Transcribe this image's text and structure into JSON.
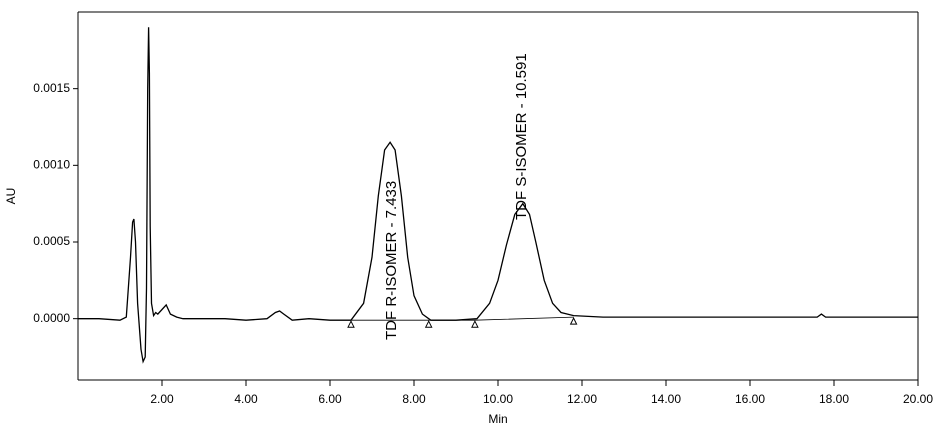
{
  "chart_data": {
    "type": "line",
    "x_label": "Min",
    "y_label": "AU",
    "xlim": [
      0,
      20
    ],
    "ylim": [
      -0.0004,
      0.002
    ],
    "xticks": [
      {
        "value": 2,
        "label": "2.00"
      },
      {
        "value": 4,
        "label": "4.00"
      },
      {
        "value": 6,
        "label": "6.00"
      },
      {
        "value": 8,
        "label": "8.00"
      },
      {
        "value": 10,
        "label": "10.00"
      },
      {
        "value": 12,
        "label": "12.00"
      },
      {
        "value": 14,
        "label": "14.00"
      },
      {
        "value": 16,
        "label": "16.00"
      },
      {
        "value": 18,
        "label": "18.00"
      },
      {
        "value": 20,
        "label": "20.00"
      }
    ],
    "yticks": [
      {
        "value": 0,
        "label": "0.0000"
      },
      {
        "value": 0.0005,
        "label": "0.0005"
      },
      {
        "value": 0.001,
        "label": "0.0010"
      },
      {
        "value": 0.0015,
        "label": "0.0015"
      }
    ],
    "color": "#000000",
    "x": [
      0,
      0.5,
      1.0,
      1.15,
      1.25,
      1.3,
      1.33,
      1.37,
      1.42,
      1.5,
      1.55,
      1.6,
      1.63,
      1.66,
      1.68,
      1.7,
      1.72,
      1.75,
      1.8,
      1.85,
      1.9,
      2.0,
      2.1,
      2.2,
      2.35,
      2.5,
      3.0,
      3.5,
      4.0,
      4.5,
      4.7,
      4.8,
      4.9,
      5.1,
      5.5,
      6.0,
      6.5,
      6.8,
      7.0,
      7.15,
      7.3,
      7.43,
      7.55,
      7.7,
      7.85,
      8.0,
      8.2,
      8.4,
      9.0,
      9.5,
      9.8,
      10.0,
      10.2,
      10.4,
      10.59,
      10.75,
      10.9,
      11.1,
      11.3,
      11.5,
      11.8,
      12.5,
      14,
      16,
      17.6,
      17.7,
      17.8,
      19,
      20
    ],
    "values": [
      0,
      0,
      -1e-05,
      1e-05,
      0.0004,
      0.00063,
      0.00065,
      0.0005,
      0.0001,
      -0.0002,
      -0.00028,
      -0.00025,
      0.0002,
      0.0015,
      0.0019,
      0.0016,
      0.0006,
      0.0001,
      2e-05,
      4e-05,
      3e-05,
      6e-05,
      9e-05,
      3e-05,
      1e-05,
      0,
      0,
      0,
      -1e-05,
      0,
      4e-05,
      5e-05,
      3e-05,
      -1e-05,
      0,
      -1e-05,
      -1e-05,
      0.0001,
      0.0004,
      0.0008,
      0.0011,
      0.00115,
      0.0011,
      0.0008,
      0.0004,
      0.00015,
      3e-05,
      -1e-05,
      -1e-05,
      0,
      0.0001,
      0.00025,
      0.00048,
      0.00068,
      0.00075,
      0.00068,
      0.0005,
      0.00025,
      0.0001,
      4e-05,
      2e-05,
      1e-05,
      1e-05,
      1e-05,
      1e-05,
      3e-05,
      1e-05,
      1e-05,
      1e-05
    ],
    "baseline_markers": {
      "x": [
        6.5,
        8.35,
        9.45,
        11.8
      ],
      "values": [
        -1e-05,
        -1e-05,
        -1e-05,
        1e-05
      ]
    },
    "annotations": [
      "TDF R-ISOMER - 7.433",
      "TDF S-ISOMER - 10.591"
    ]
  }
}
